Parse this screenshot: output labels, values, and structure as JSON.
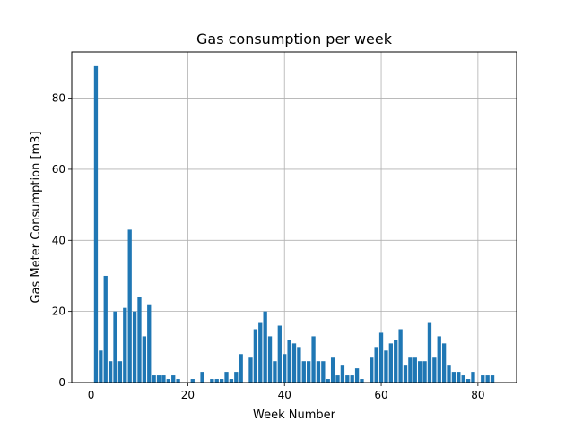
{
  "chart_data": {
    "type": "bar",
    "title": "Gas consumption per week",
    "xlabel": "Week Number",
    "ylabel": "Gas Meter Consumption [m3]",
    "xlim": [
      -4,
      88
    ],
    "ylim": [
      0,
      93
    ],
    "xticks": [
      0,
      20,
      40,
      60,
      80
    ],
    "yticks": [
      0,
      20,
      40,
      60,
      80
    ],
    "grid": true,
    "bar_color": "#1f77b4",
    "x": [
      1,
      2,
      3,
      4,
      5,
      6,
      7,
      8,
      9,
      10,
      11,
      12,
      13,
      14,
      15,
      16,
      17,
      18,
      19,
      20,
      21,
      22,
      23,
      24,
      25,
      26,
      27,
      28,
      29,
      30,
      31,
      32,
      33,
      34,
      35,
      36,
      37,
      38,
      39,
      40,
      41,
      42,
      43,
      44,
      45,
      46,
      47,
      48,
      49,
      50,
      51,
      52,
      53,
      54,
      55,
      56,
      57,
      58,
      59,
      60,
      61,
      62,
      63,
      64,
      65,
      66,
      67,
      68,
      69,
      70,
      71,
      72,
      73,
      74,
      75,
      76,
      77,
      78,
      79,
      80,
      81,
      82,
      83
    ],
    "values": [
      89,
      9,
      30,
      6,
      20,
      6,
      21,
      43,
      20,
      24,
      13,
      22,
      2,
      2,
      2,
      1,
      2,
      1,
      0,
      0,
      1,
      0,
      3,
      0,
      1,
      1,
      1,
      3,
      1,
      3,
      8,
      0,
      7,
      15,
      17,
      20,
      13,
      6,
      16,
      8,
      12,
      11,
      10,
      6,
      6,
      13,
      6,
      6,
      1,
      7,
      2,
      5,
      2,
      2,
      4,
      1,
      0,
      7,
      10,
      14,
      9,
      11,
      12,
      15,
      5,
      7,
      7,
      6,
      6,
      17,
      7,
      13,
      11,
      5,
      3,
      3,
      2,
      1,
      3,
      0,
      2,
      2,
      2
    ]
  }
}
